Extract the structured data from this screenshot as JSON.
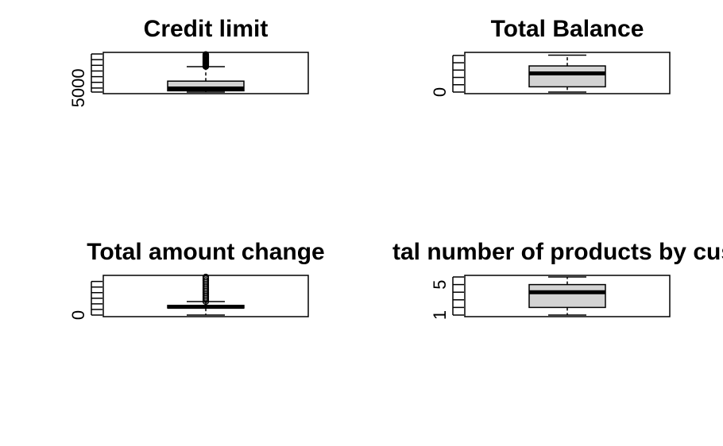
{
  "chart_data": [
    {
      "type": "boxplot",
      "title": "Credit limit",
      "ytick_labels": [
        {
          "value": 5000,
          "text": "5000"
        }
      ],
      "ylim": [
        1438,
        35000
      ],
      "minor_ticks": [
        1438,
        5000,
        10000,
        15000,
        20000,
        25000,
        30000,
        35000
      ],
      "box": {
        "min": 1438,
        "q1": 2555,
        "median": 4549,
        "q3": 11068,
        "whisker_high": 23800,
        "outliers_from": 23900,
        "max": 34516
      }
    },
    {
      "type": "boxplot",
      "title": "Total Balance",
      "ytick_labels": [
        {
          "value": 0,
          "text": "0"
        }
      ],
      "ylim": [
        0,
        2600
      ],
      "minor_ticks": [
        0,
        500,
        1000,
        1500,
        2000,
        2500
      ],
      "box": {
        "min": 0,
        "q1": 359,
        "median": 1276,
        "q3": 1784,
        "whisker_high": 2517,
        "max": 2517
      }
    },
    {
      "type": "boxplot",
      "title": "Total amount change",
      "ytick_labels": [
        {
          "value": 0,
          "text": "0"
        }
      ],
      "ylim": [
        0,
        3.4
      ],
      "minor_ticks": [
        0,
        0.5,
        1,
        1.5,
        2,
        2.5,
        3
      ],
      "box": {
        "min": 0,
        "q1": 0.631,
        "median": 0.736,
        "q3": 0.859,
        "whisker_high": 1.2,
        "outliers_from": 1.21,
        "max": 3.397
      }
    },
    {
      "type": "boxplot",
      "title": "tal number of products by cust",
      "ytick_labels": [
        {
          "value": 1,
          "text": "1"
        },
        {
          "value": 5,
          "text": "5"
        }
      ],
      "ylim": [
        1,
        6
      ],
      "minor_ticks": [
        1,
        2,
        3,
        4,
        5,
        6
      ],
      "box": {
        "min": 1,
        "q1": 2,
        "median": 4,
        "q3": 5,
        "whisker_high": 6,
        "max": 6
      }
    }
  ]
}
